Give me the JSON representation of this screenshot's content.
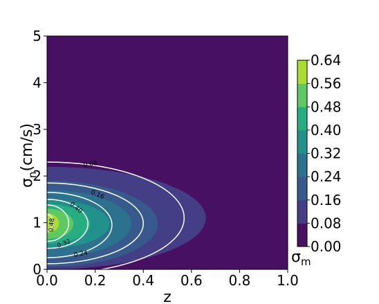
{
  "chart_data": {
    "type": "heatmap",
    "subtype": "filled-contour",
    "xlabel": "z",
    "ylabel": "σn(cm/s)",
    "ylabel_main": "σ",
    "ylabel_sub": "n",
    "ylabel_rest": "(cm/s)",
    "xlim": [
      0.0,
      1.0
    ],
    "ylim": [
      0,
      5
    ],
    "xticks": [
      0.0,
      0.2,
      0.4,
      0.6,
      0.8,
      1.0
    ],
    "xtick_labels": [
      "0.0",
      "0.2",
      "0.4",
      "0.6",
      "0.8",
      "1.0"
    ],
    "yticks": [
      0,
      1,
      2,
      3,
      4,
      5
    ],
    "ytick_labels": [
      "0",
      "1",
      "2",
      "3",
      "4",
      "5"
    ],
    "colorbar": {
      "label": "σm",
      "label_main": "σ",
      "label_sub": "m",
      "levels": [
        0.0,
        0.08,
        0.16,
        0.24,
        0.32,
        0.4,
        0.48,
        0.56,
        0.64
      ],
      "tick_labels": [
        "0.00",
        "0.08",
        "0.16",
        "0.24",
        "0.32",
        "0.40",
        "0.48",
        "0.56",
        "0.64"
      ],
      "colors": [
        "#471063",
        "#433e85",
        "#38598c",
        "#2c728e",
        "#21918c",
        "#27ad81",
        "#5ec962",
        "#aadc32",
        "#fde725"
      ]
    },
    "peak": {
      "z": 0.0,
      "sigma_n": 1.0,
      "sigma_m": 0.62
    },
    "filled_region_extents": [
      {
        "level": 0.08,
        "z_max": 0.66,
        "sigma_n_min": 0.0,
        "sigma_n_max": 2.2
      },
      {
        "level": 0.16,
        "z_max": 0.46,
        "sigma_n_min": 0.05,
        "sigma_n_max": 1.9
      },
      {
        "level": 0.24,
        "z_max": 0.35,
        "sigma_n_min": 0.25,
        "sigma_n_max": 1.7
      },
      {
        "level": 0.32,
        "z_max": 0.26,
        "sigma_n_min": 0.45,
        "sigma_n_max": 1.5
      },
      {
        "level": 0.4,
        "z_max": 0.18,
        "sigma_n_min": 0.55,
        "sigma_n_max": 1.4
      },
      {
        "level": 0.48,
        "z_max": 0.11,
        "sigma_n_min": 0.65,
        "sigma_n_max": 1.3
      },
      {
        "level": 0.56,
        "z_max": 0.05,
        "sigma_n_min": 0.78,
        "sigma_n_max": 1.2
      }
    ],
    "contour_lines": [
      {
        "level": 0.08,
        "label": "0.08",
        "z_max": 0.57,
        "sigma_n_min": -0.1,
        "sigma_n_max": 2.3
      },
      {
        "level": 0.16,
        "label": "0.16",
        "z_max": 0.4,
        "sigma_n_min": 0.12,
        "sigma_n_max": 1.85
      },
      {
        "level": 0.24,
        "label": "0.24",
        "z_max": 0.27,
        "sigma_n_min": 0.25,
        "sigma_n_max": 1.65
      },
      {
        "level": 0.32,
        "label": "0.32",
        "z_max": 0.17,
        "sigma_n_min": 0.45,
        "sigma_n_max": 1.5
      },
      {
        "level": 0.4,
        "label": "0.40",
        "z_max": 0.09,
        "sigma_n_min": 0.6,
        "sigma_n_max": 1.38
      },
      {
        "level": 0.48,
        "label": "0.48",
        "z_max": 0.025,
        "sigma_n_min": 0.82,
        "sigma_n_max": 1.18
      }
    ],
    "line_label_positions": [
      {
        "label": "0.08",
        "z": 0.18,
        "sigma_n": 2.25,
        "angle": -10
      },
      {
        "label": "0.16",
        "z": 0.21,
        "sigma_n": 1.6,
        "angle": 25
      },
      {
        "label": "0.40",
        "z": 0.12,
        "sigma_n": 1.32,
        "angle": 40
      },
      {
        "label": "0.48",
        "z": 0.02,
        "sigma_n": 0.95,
        "angle": -85
      },
      {
        "label": "0.32",
        "z": 0.07,
        "sigma_n": 0.55,
        "angle": -20
      },
      {
        "label": "0.24",
        "z": 0.14,
        "sigma_n": 0.33,
        "angle": -10
      }
    ]
  }
}
